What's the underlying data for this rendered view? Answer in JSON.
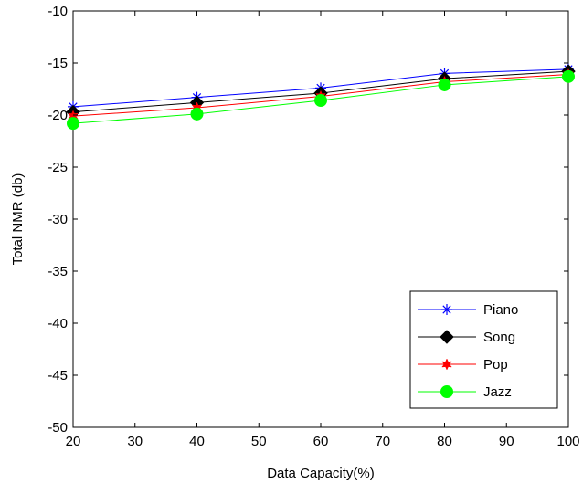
{
  "chart_data": {
    "type": "line",
    "xlabel": "Data Capacity(%)",
    "ylabel": "Total NMR (db)",
    "x": [
      20,
      40,
      60,
      80,
      100
    ],
    "xlim": [
      20,
      100
    ],
    "ylim": [
      -50,
      -10
    ],
    "xticks": [
      20,
      30,
      40,
      50,
      60,
      70,
      80,
      90,
      100
    ],
    "yticks": [
      -10,
      -15,
      -20,
      -25,
      -30,
      -35,
      -40,
      -45,
      -50
    ],
    "legend_position": "bottom-right",
    "grid": false,
    "series": [
      {
        "name": "Piano",
        "color": "#0000ff",
        "marker": "asterisk",
        "values": [
          -19.2,
          -18.3,
          -17.4,
          -16.0,
          -15.6
        ]
      },
      {
        "name": "Song",
        "color": "#000000",
        "marker": "diamond",
        "values": [
          -19.7,
          -18.8,
          -17.9,
          -16.5,
          -15.8
        ]
      },
      {
        "name": "Pop",
        "color": "#ff0000",
        "marker": "star",
        "values": [
          -20.1,
          -19.3,
          -18.2,
          -16.8,
          -16.1
        ]
      },
      {
        "name": "Jazz",
        "color": "#00ff00",
        "marker": "circle",
        "values": [
          -20.8,
          -19.9,
          -18.6,
          -17.1,
          -16.3
        ]
      }
    ]
  }
}
